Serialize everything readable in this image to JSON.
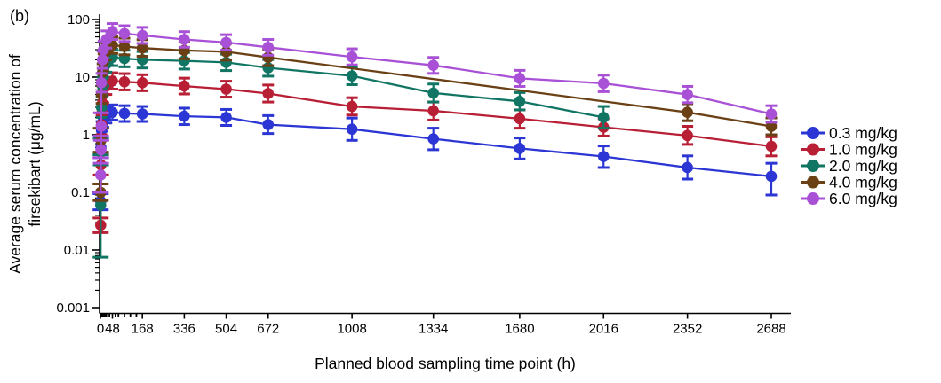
{
  "figure": {
    "panel_label": "(b)"
  },
  "chart_data": {
    "type": "line",
    "title": "",
    "xlabel": "Planned blood sampling time point (h)",
    "ylabel": "Average serum concentration of firsekibart (μg/mL)",
    "ylabel_lines": [
      "Average serum concentration of",
      "firsekibart (μg/mL)"
    ],
    "grid": false,
    "legend_position": "right",
    "x_axis": {
      "scale": "linear",
      "range": [
        0,
        2750
      ],
      "major_ticks": [
        0,
        48,
        168,
        336,
        504,
        672,
        1008,
        1334,
        1680,
        2016,
        2352,
        2688
      ],
      "minor_ticks": [
        1,
        2,
        3,
        4,
        6,
        8,
        12,
        16,
        20,
        24,
        36,
        60,
        72,
        96,
        120,
        144
      ]
    },
    "y_axis": {
      "scale": "log",
      "range": [
        0.001,
        100
      ],
      "major_ticks": [
        0.001,
        0.01,
        0.1,
        1,
        10,
        100
      ],
      "tick_labels": [
        "0.001",
        "0.01",
        "0.1",
        "1",
        "10",
        "100"
      ]
    },
    "series": [
      {
        "name": "0.3 mg/kg",
        "color": "#2b36d4",
        "marker": "circle",
        "points": [
          [
            1,
            0.07,
            0.05,
            0.095
          ],
          [
            2,
            0.6,
            0.4,
            0.9
          ],
          [
            4,
            1.2,
            0.85,
            1.7
          ],
          [
            8,
            1.6,
            1.15,
            2.2
          ],
          [
            12,
            1.9,
            1.35,
            2.6
          ],
          [
            24,
            2.2,
            1.6,
            3.0
          ],
          [
            48,
            2.45,
            1.8,
            3.3
          ],
          [
            96,
            2.35,
            1.7,
            3.2
          ],
          [
            168,
            2.3,
            1.7,
            3.1
          ],
          [
            336,
            2.1,
            1.5,
            2.9
          ],
          [
            504,
            2.0,
            1.45,
            2.75
          ],
          [
            672,
            1.5,
            1.05,
            2.15
          ],
          [
            1008,
            1.25,
            0.8,
            1.95
          ],
          [
            1334,
            0.85,
            0.55,
            1.3
          ],
          [
            1680,
            0.58,
            0.38,
            0.88
          ],
          [
            2016,
            0.42,
            0.27,
            0.64
          ],
          [
            2352,
            0.27,
            0.17,
            0.43
          ],
          [
            2688,
            0.19,
            0.09,
            0.32
          ]
        ]
      },
      {
        "name": "1.0 mg/kg",
        "color": "#b81f35",
        "marker": "circle",
        "points": [
          [
            1,
            0.027,
            0.02,
            0.036
          ],
          [
            2,
            0.3,
            0.2,
            0.45
          ],
          [
            4,
            1.5,
            1.0,
            2.2
          ],
          [
            8,
            3.5,
            2.5,
            4.9
          ],
          [
            12,
            5.0,
            3.6,
            7.0
          ],
          [
            24,
            7.0,
            5.0,
            9.8
          ],
          [
            48,
            8.6,
            6.2,
            11.9
          ],
          [
            96,
            8.3,
            6.0,
            11.5
          ],
          [
            168,
            8.0,
            5.8,
            11.0
          ],
          [
            336,
            7.0,
            5.1,
            9.6
          ],
          [
            504,
            6.2,
            4.5,
            8.5
          ],
          [
            672,
            5.2,
            3.7,
            7.3
          ],
          [
            1008,
            3.1,
            2.2,
            4.4
          ],
          [
            1334,
            2.6,
            1.8,
            3.7
          ],
          [
            1680,
            1.9,
            1.3,
            2.7
          ],
          [
            2016,
            1.35,
            0.95,
            1.9
          ],
          [
            2352,
            0.97,
            0.68,
            1.4
          ],
          [
            2688,
            0.63,
            0.43,
            0.92
          ]
        ]
      },
      {
        "name": "2.0 mg/kg",
        "color": "#117564",
        "marker": "circle",
        "points": [
          [
            1,
            0.06,
            0.0075,
            0.45
          ],
          [
            2,
            0.5,
            0.3,
            0.85
          ],
          [
            4,
            3.0,
            2.0,
            4.5
          ],
          [
            8,
            7.0,
            4.9,
            10.0
          ],
          [
            12,
            10.0,
            7.0,
            14.2
          ],
          [
            24,
            17.0,
            12.2,
            23.6
          ],
          [
            48,
            22.0,
            15.8,
            30.6
          ],
          [
            96,
            21.0,
            15.1,
            29.2
          ],
          [
            168,
            20.0,
            14.4,
            27.8
          ],
          [
            336,
            19.2,
            13.8,
            26.7
          ],
          [
            504,
            18.0,
            13.0,
            25.0
          ],
          [
            672,
            14.5,
            10.4,
            20.2
          ],
          [
            1008,
            10.5,
            7.4,
            14.9
          ],
          [
            1334,
            5.3,
            3.7,
            7.6
          ],
          [
            1680,
            3.8,
            2.7,
            5.4
          ],
          [
            2016,
            2.0,
            1.3,
            3.1
          ]
        ]
      },
      {
        "name": "4.0 mg/kg",
        "color": "#6a4014",
        "marker": "circle",
        "points": [
          [
            1,
            0.1,
            0.072,
            0.14
          ],
          [
            2,
            0.8,
            0.5,
            1.3
          ],
          [
            4,
            5.0,
            3.5,
            7.1
          ],
          [
            8,
            12.0,
            8.5,
            17.0
          ],
          [
            12,
            18.0,
            12.8,
            25.3
          ],
          [
            24,
            28.0,
            20.0,
            39.2
          ],
          [
            48,
            36.0,
            25.8,
            50.2
          ],
          [
            96,
            34.0,
            24.4,
            47.4
          ],
          [
            168,
            32.0,
            23.0,
            44.6
          ],
          [
            336,
            29.0,
            20.8,
            40.4
          ],
          [
            504,
            27.5,
            19.7,
            38.3
          ],
          [
            672,
            22.0,
            15.8,
            30.6
          ],
          [
            2352,
            2.45,
            1.75,
            3.45
          ],
          [
            2688,
            1.4,
            1.0,
            1.96
          ]
        ]
      },
      {
        "name": "6.0 mg/kg",
        "color": "#a951d6",
        "marker": "circle",
        "points": [
          [
            1,
            0.2,
            0.1,
            0.4
          ],
          [
            2,
            0.55,
            0.32,
            0.95
          ],
          [
            3,
            1.4,
            0.8,
            2.4
          ],
          [
            4,
            8.0,
            5.5,
            11.6
          ],
          [
            8,
            20.0,
            14.2,
            28.2
          ],
          [
            12,
            30.0,
            21.3,
            42.3
          ],
          [
            24,
            45.0,
            32.0,
            63.4
          ],
          [
            48,
            62.0,
            45.0,
            85.0
          ],
          [
            96,
            57.0,
            41.5,
            78.0
          ],
          [
            168,
            53.0,
            38.5,
            73.0
          ],
          [
            336,
            45.0,
            33.0,
            61.5
          ],
          [
            504,
            40.0,
            29.5,
            54.5
          ],
          [
            672,
            33.0,
            24.0,
            45.0
          ],
          [
            1008,
            22.5,
            16.3,
            31.0
          ],
          [
            1334,
            16.0,
            11.6,
            22.0
          ],
          [
            1680,
            9.5,
            6.9,
            13.1
          ],
          [
            2016,
            7.8,
            5.6,
            10.8
          ],
          [
            2352,
            5.0,
            3.6,
            6.9
          ],
          [
            2688,
            2.3,
            1.65,
            3.2
          ]
        ]
      }
    ],
    "legend": {
      "labels": [
        "0.3 mg/kg",
        "1.0 mg/kg",
        "2.0 mg/kg",
        "4.0 mg/kg",
        "6.0 mg/kg"
      ]
    }
  }
}
